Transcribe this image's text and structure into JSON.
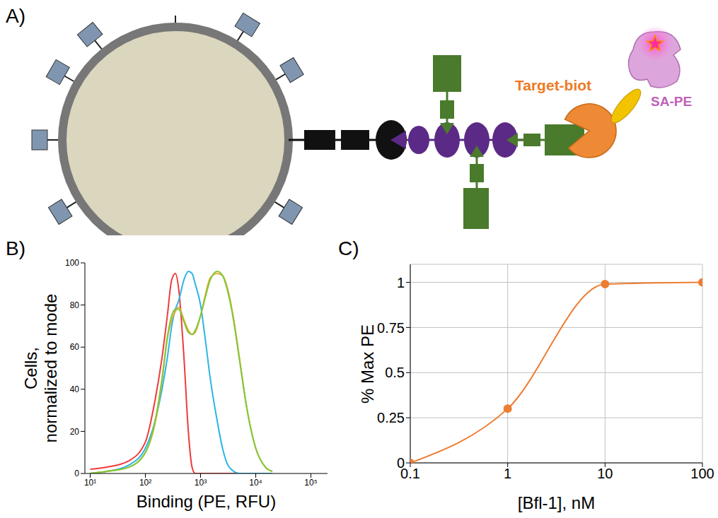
{
  "diagram": {
    "panel": "A)",
    "labels": [
      "Target-biot",
      "SA-PE"
    ]
  },
  "chart_data": [
    {
      "panel": "B)",
      "type": "line",
      "xlabel": "Binding (PE, RFU)",
      "ylabel": "Cells, normalized to mode",
      "log": "x",
      "grid": false,
      "x": [
        10,
        20,
        50,
        100,
        150,
        200,
        250,
        300,
        350,
        400,
        500,
        600,
        700,
        800,
        1000,
        1200,
        1500,
        2000,
        2500,
        3000,
        4000,
        5000,
        7000,
        10000,
        15000,
        20000
      ],
      "xlim": [
        8,
        200000
      ],
      "xticks": [
        {
          "value": 10,
          "label": "10¹"
        },
        {
          "value": 100,
          "label": "10²"
        },
        {
          "value": 1000,
          "label": "10³"
        },
        {
          "value": 10000,
          "label": "10⁴"
        },
        {
          "value": 100000,
          "label": "10⁵"
        }
      ],
      "ylim": [
        0,
        100
      ],
      "yticks": [
        0,
        20,
        40,
        60,
        80,
        100
      ],
      "series": [
        {
          "color": "#f03a3a",
          "values": [
            2,
            3,
            6,
            15,
            35,
            55,
            75,
            92,
            95,
            88,
            55,
            20,
            3,
            0,
            0,
            0,
            0,
            0,
            0,
            0,
            0,
            0,
            0,
            0,
            0,
            0
          ]
        },
        {
          "color": "#2bb5e6",
          "values": [
            0,
            1,
            4,
            12,
            25,
            40,
            55,
            70,
            78,
            82,
            92,
            96,
            95,
            90,
            80,
            65,
            45,
            25,
            12,
            5,
            1,
            0,
            0,
            0,
            0,
            0
          ]
        },
        {
          "color": "#f0a830",
          "values": [
            0,
            1,
            3,
            10,
            24,
            44,
            64,
            73,
            77,
            79,
            73,
            68,
            66,
            67,
            75,
            84,
            93,
            95,
            94,
            89,
            73,
            56,
            30,
            12,
            3,
            1
          ]
        },
        {
          "color": "#7dc93c",
          "values": [
            0,
            1,
            3,
            10,
            25,
            45,
            65,
            75,
            78,
            78,
            72,
            67,
            66,
            68,
            75,
            83,
            92,
            96,
            94,
            88,
            72,
            55,
            30,
            12,
            3,
            1
          ]
        }
      ]
    },
    {
      "panel": "C)",
      "type": "line",
      "xlabel": "[Bfl-1], nM",
      "ylabel": "% Max PE",
      "log": "x",
      "grid": true,
      "x": [
        0.1,
        1,
        10,
        100
      ],
      "values": [
        0,
        0.3,
        0.99,
        1
      ],
      "color": "#ed7d31",
      "marker": "circle",
      "xlim": [
        0.1,
        100
      ],
      "xticks": [
        0.1,
        1,
        10,
        100
      ],
      "ylim": [
        0,
        1.1
      ],
      "yticks": [
        0,
        0.25,
        0.5,
        0.75,
        1
      ]
    }
  ]
}
